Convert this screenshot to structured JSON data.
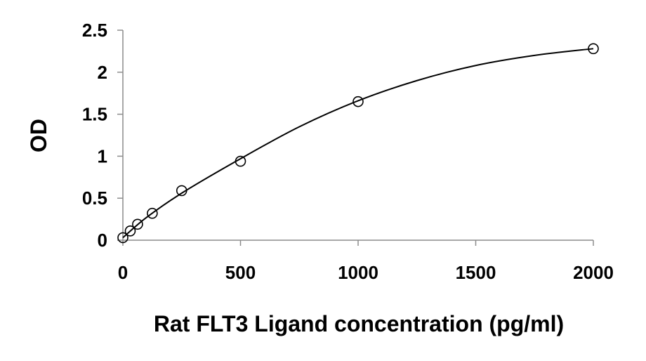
{
  "chart_data": {
    "type": "scatter",
    "title": "",
    "xlabel": "Rat FLT3 Ligand concentration (pg/ml)",
    "ylabel": "OD",
    "xlim": [
      0,
      2000
    ],
    "ylim": [
      0,
      2.5
    ],
    "x_ticks": [
      0,
      500,
      1000,
      1500,
      2000
    ],
    "x_tick_labels": [
      "0",
      "500",
      "1000",
      "1500",
      "2000"
    ],
    "y_ticks": [
      0,
      0.5,
      1,
      1.5,
      2,
      2.5
    ],
    "y_tick_labels": [
      "0",
      "0.5",
      "1",
      "1.5",
      "2",
      "2.5"
    ],
    "grid": false,
    "legend": "none",
    "marker": "open-circle",
    "fit": "smooth-curve",
    "series": [
      {
        "x": [
          0,
          31.25,
          62.5,
          125,
          250,
          500,
          1000,
          2000
        ],
        "y": [
          0.03,
          0.11,
          0.19,
          0.32,
          0.59,
          0.94,
          1.65,
          2.28
        ]
      }
    ],
    "fit_curve": {
      "x": [
        0,
        100,
        250,
        500,
        750,
        1000,
        1250,
        1500,
        1750,
        2000
      ],
      "y": [
        0.03,
        0.27,
        0.56,
        0.97,
        1.35,
        1.66,
        1.9,
        2.08,
        2.2,
        2.28
      ]
    }
  }
}
